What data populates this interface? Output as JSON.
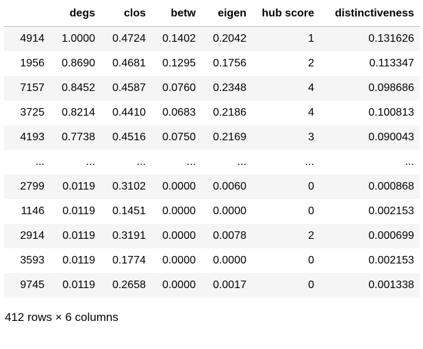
{
  "table": {
    "columns": [
      "",
      "degs",
      "clos",
      "betw",
      "eigen",
      "hub score",
      "distinctiveness"
    ],
    "rows": [
      {
        "index": "4914",
        "cells": [
          "1.0000",
          "0.4724",
          "0.1402",
          "0.2042",
          "1",
          "0.131626"
        ]
      },
      {
        "index": "1956",
        "cells": [
          "0.8690",
          "0.4681",
          "0.1295",
          "0.1756",
          "2",
          "0.113347"
        ]
      },
      {
        "index": "7157",
        "cells": [
          "0.8452",
          "0.4587",
          "0.0760",
          "0.2348",
          "4",
          "0.098686"
        ]
      },
      {
        "index": "3725",
        "cells": [
          "0.8214",
          "0.4410",
          "0.0683",
          "0.2186",
          "4",
          "0.100813"
        ]
      },
      {
        "index": "4193",
        "cells": [
          "0.7738",
          "0.4516",
          "0.0750",
          "0.2169",
          "3",
          "0.090043"
        ]
      },
      {
        "index": "...",
        "cells": [
          "...",
          "...",
          "...",
          "...",
          "...",
          "..."
        ]
      },
      {
        "index": "2799",
        "cells": [
          "0.0119",
          "0.3102",
          "0.0000",
          "0.0060",
          "0",
          "0.000868"
        ]
      },
      {
        "index": "1146",
        "cells": [
          "0.0119",
          "0.1451",
          "0.0000",
          "0.0000",
          "0",
          "0.002153"
        ]
      },
      {
        "index": "2914",
        "cells": [
          "0.0119",
          "0.3191",
          "0.0000",
          "0.0078",
          "2",
          "0.000699"
        ]
      },
      {
        "index": "3593",
        "cells": [
          "0.0119",
          "0.1774",
          "0.0000",
          "0.0000",
          "0",
          "0.002153"
        ]
      },
      {
        "index": "9745",
        "cells": [
          "0.0119",
          "0.2658",
          "0.0000",
          "0.0017",
          "0",
          "0.001338"
        ]
      }
    ]
  },
  "footer": {
    "shape_text": "412 rows × 6 columns"
  },
  "colors": {
    "stripe": "#f5f5f5",
    "header_rule": "#bdbdbd",
    "text": "#000000"
  }
}
